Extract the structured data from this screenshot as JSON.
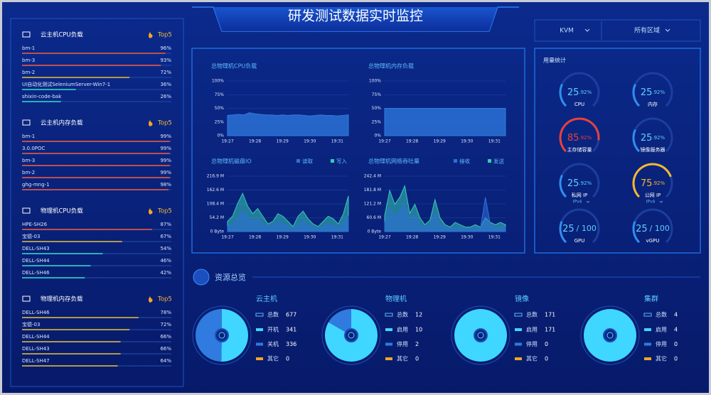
{
  "title": "研发测试数据实时监控",
  "filters": [
    "KVM",
    "所有区域"
  ],
  "rankings": [
    {
      "title": "云主机CPU负载",
      "badge": "Top5",
      "items": [
        {
          "name": "bm-1",
          "value": 96,
          "value_label": "96%",
          "color": "#e8573f"
        },
        {
          "name": "bm-3",
          "value": 93,
          "value_label": "93%",
          "color": "#e8573f"
        },
        {
          "name": "bm-2",
          "value": 72,
          "value_label": "72%",
          "color": "#d8b53a"
        },
        {
          "name": "UI自动化测试SeleniumServer-Win7-1",
          "value": 36,
          "value_label": "36%",
          "color": "#2fd3c4"
        },
        {
          "name": "shixin-code-bak",
          "value": 26,
          "value_label": "26%",
          "color": "#2fd3c4"
        }
      ]
    },
    {
      "title": "云主机内存负载",
      "badge": "Top5",
      "items": [
        {
          "name": "bm-1",
          "value": 99,
          "value_label": "99%",
          "color": "#e8573f"
        },
        {
          "name": "3.0.0POC",
          "value": 99,
          "value_label": "99%",
          "color": "#e8573f"
        },
        {
          "name": "bm-3",
          "value": 99,
          "value_label": "99%",
          "color": "#e8573f"
        },
        {
          "name": "bm-2",
          "value": 99,
          "value_label": "99%",
          "color": "#e8573f"
        },
        {
          "name": "ghg-mng-1",
          "value": 98,
          "value_label": "98%",
          "color": "#e8573f"
        }
      ]
    },
    {
      "title": "物理机CPU负载",
      "badge": "Top5",
      "items": [
        {
          "name": "HPE-SH26",
          "value": 87,
          "value_label": "87%",
          "color": "#e8573f"
        },
        {
          "name": "宝德-03",
          "value": 67,
          "value_label": "67%",
          "color": "#d8b53a"
        },
        {
          "name": "DELL-SH43",
          "value": 54,
          "value_label": "54%",
          "color": "#2fd3c4"
        },
        {
          "name": "DELL-SH44",
          "value": 46,
          "value_label": "46%",
          "color": "#2fd3c4"
        },
        {
          "name": "DELL-SH46",
          "value": 42,
          "value_label": "42%",
          "color": "#2fd3c4"
        }
      ]
    },
    {
      "title": "物理机内存负载",
      "badge": "Top5",
      "items": [
        {
          "name": "DELL-SH46",
          "value": 78,
          "value_label": "78%",
          "color": "#d8b53a"
        },
        {
          "name": "宝德-03",
          "value": 72,
          "value_label": "72%",
          "color": "#d8b53a"
        },
        {
          "name": "DELL-SH44",
          "value": 66,
          "value_label": "66%",
          "color": "#d8b53a"
        },
        {
          "name": "DELL-SH43",
          "value": 66,
          "value_label": "66%",
          "color": "#d8b53a"
        },
        {
          "name": "DELL-SH47",
          "value": 64,
          "value_label": "64%",
          "color": "#d8b53a"
        }
      ]
    }
  ],
  "charts": [
    {
      "type": "area",
      "title": "总物理机CPU负载",
      "xticks": [
        "19:27",
        "19:28",
        "19:29",
        "19:30",
        "19:31"
      ],
      "ylim": [
        0,
        100
      ],
      "yticks": [
        {
          "value": 0,
          "label": "0%"
        },
        {
          "value": 25,
          "label": "25%"
        },
        {
          "value": 50,
          "label": "50%"
        },
        {
          "value": 75,
          "label": "75%"
        },
        {
          "value": 100,
          "label": "100%"
        }
      ],
      "series": [
        {
          "color": "#2f7be0",
          "values": [
            37,
            38,
            39,
            38,
            42,
            40,
            39,
            38,
            38,
            37,
            38,
            37,
            38,
            38,
            37,
            36,
            37,
            38,
            37,
            37,
            36,
            37,
            38
          ]
        }
      ]
    },
    {
      "type": "area",
      "title": "总物理机内存负载",
      "xticks": [
        "19:27",
        "19:28",
        "19:29",
        "19:30",
        "19:31"
      ],
      "ylim": [
        0,
        100
      ],
      "yticks": [
        {
          "value": 0,
          "label": "0%"
        },
        {
          "value": 25,
          "label": "25%"
        },
        {
          "value": 50,
          "label": "50%"
        },
        {
          "value": 75,
          "label": "75%"
        },
        {
          "value": 100,
          "label": "100%"
        }
      ],
      "series": [
        {
          "color": "#2f7be0",
          "values": [
            50,
            50,
            50,
            50,
            50,
            50,
            50,
            50,
            50,
            50,
            50,
            50,
            50,
            50,
            50,
            50,
            50,
            50,
            50,
            50,
            50,
            50,
            50
          ]
        }
      ]
    },
    {
      "type": "area",
      "title": "总物理机磁盘IO",
      "xticks": [
        "19:27",
        "19:28",
        "19:29",
        "19:30",
        "19:31"
      ],
      "ylim": [
        0,
        216.9
      ],
      "yticks": [
        {
          "value": 0,
          "label": "0 Byte"
        },
        {
          "value": 54.2,
          "label": "54.2 M"
        },
        {
          "value": 108.4,
          "label": "108.4 M"
        },
        {
          "value": 162.6,
          "label": "162.6 M"
        },
        {
          "value": 216.9,
          "label": "216.9 M"
        }
      ],
      "series": [
        {
          "name": "写入",
          "color": "#37c9b8",
          "values": [
            40,
            60,
            110,
            150,
            100,
            70,
            90,
            60,
            30,
            40,
            70,
            60,
            40,
            20,
            60,
            80,
            50,
            30,
            20,
            40,
            60,
            50,
            30,
            70,
            140
          ]
        },
        {
          "name": "读取",
          "color": "#2f6fd8",
          "values": [
            20,
            30,
            50,
            80,
            60,
            40,
            50,
            30,
            20,
            25,
            40,
            30,
            20,
            10,
            30,
            40,
            25,
            15,
            10,
            20,
            30,
            25,
            15,
            35,
            60
          ]
        }
      ]
    },
    {
      "type": "area",
      "title": "总物理机网络吞吐量",
      "xticks": [
        "19:27",
        "19:28",
        "19:29",
        "19:30",
        "19:31"
      ],
      "ylim": [
        0,
        242.4
      ],
      "yticks": [
        {
          "value": 0,
          "label": "0 Byte"
        },
        {
          "value": 60.6,
          "label": "60.6 M"
        },
        {
          "value": 121.2,
          "label": "121.2 M"
        },
        {
          "value": 181.8,
          "label": "181.8 M"
        },
        {
          "value": 242.4,
          "label": "242.4 M"
        }
      ],
      "series": [
        {
          "name": "发送",
          "color": "#37c9b8",
          "values": [
            70,
            180,
            120,
            150,
            200,
            80,
            120,
            60,
            30,
            50,
            140,
            60,
            30,
            20,
            40,
            30,
            20,
            20,
            30,
            20,
            60,
            40,
            30,
            40,
            30
          ]
        },
        {
          "name": "接收",
          "color": "#2f6fd8",
          "values": [
            40,
            100,
            60,
            90,
            120,
            40,
            70,
            30,
            20,
            30,
            80,
            30,
            20,
            10,
            20,
            15,
            10,
            10,
            20,
            10,
            150,
            30,
            15,
            20,
            20
          ]
        }
      ]
    }
  ],
  "usage": {
    "title": "用量统计",
    "items": [
      {
        "name": "CPU",
        "value": 25.92,
        "label": "25",
        "unit": ".92%",
        "color": "#2f8ff0"
      },
      {
        "name": "内存",
        "value": 25.92,
        "label": "25",
        "unit": ".92%",
        "color": "#2f8ff0"
      },
      {
        "name": "主存储容量",
        "value": 85.92,
        "label": "85",
        "unit": ".92%",
        "color": "#e8413c"
      },
      {
        "name": "镜像服务器",
        "value": 25.92,
        "label": "25",
        "unit": ".92%",
        "color": "#2f8ff0"
      },
      {
        "name": "私网 IP",
        "sub": "IPv4",
        "value": 25.92,
        "label": "25",
        "unit": ".92%",
        "color": "#2f8ff0"
      },
      {
        "name": "公网 IP",
        "sub": "IPv4",
        "value": 75.92,
        "label": "75",
        "unit": ".92%",
        "color": "#f5b830"
      },
      {
        "name": "GPU",
        "value": 25,
        "max": 100,
        "label": "25",
        "unit": "/ 100",
        "color": "#2f8ff0"
      },
      {
        "name": "vGPU",
        "value": 25,
        "max": 100,
        "label": "25",
        "unit": "/ 100",
        "color": "#2f8ff0"
      }
    ]
  },
  "resources": {
    "title": "资源总览",
    "total_color": "#5fb8ff",
    "colors": [
      "#3fd6ff",
      "#2f7be0",
      "#f2a623"
    ],
    "groups": [
      {
        "name": "云主机",
        "total": {
          "label": "总数",
          "value": 677
        },
        "items": [
          {
            "label": "开机",
            "value": 341
          },
          {
            "label": "关机",
            "value": 336
          },
          {
            "label": "其它",
            "value": 0
          }
        ]
      },
      {
        "name": "物理机",
        "total": {
          "label": "总数",
          "value": 12
        },
        "items": [
          {
            "label": "启用",
            "value": 10
          },
          {
            "label": "停用",
            "value": 2
          },
          {
            "label": "其它",
            "value": 0
          }
        ]
      },
      {
        "name": "镜像",
        "total": {
          "label": "总数",
          "value": 171
        },
        "items": [
          {
            "label": "启用",
            "value": 171
          },
          {
            "label": "停用",
            "value": 0
          },
          {
            "label": "其它",
            "value": 0
          }
        ]
      },
      {
        "name": "集群",
        "total": {
          "label": "总数",
          "value": 4
        },
        "items": [
          {
            "label": "启用",
            "value": 4
          },
          {
            "label": "停用",
            "value": 0
          },
          {
            "label": "其它",
            "value": 0
          }
        ]
      }
    ]
  }
}
